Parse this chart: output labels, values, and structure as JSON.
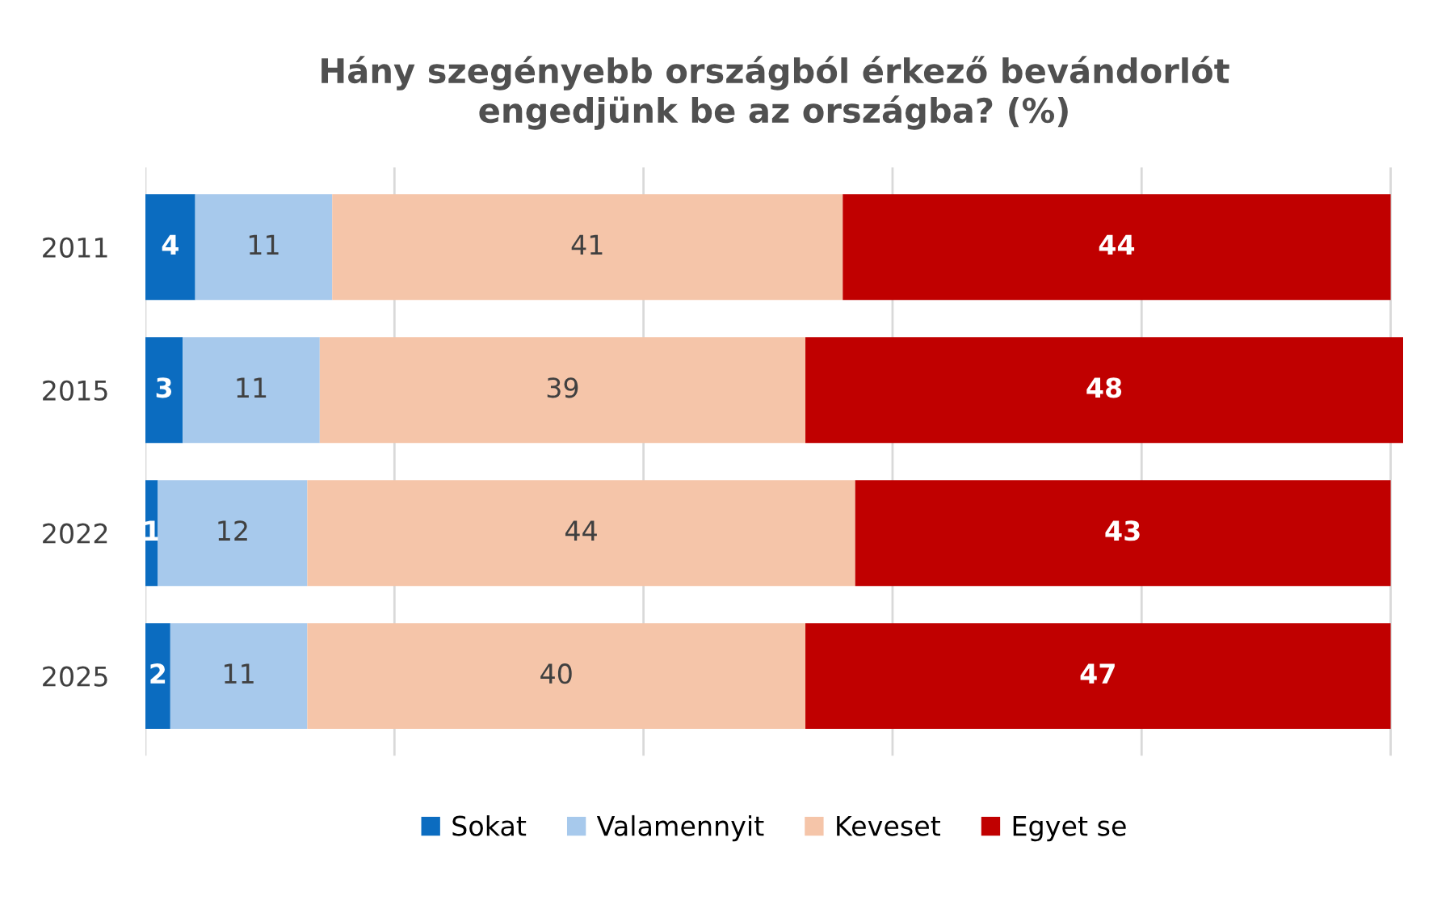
{
  "chart_data": {
    "type": "bar",
    "orientation": "horizontal",
    "stacked": true,
    "title": "Hány szegényebb országból érkező bevándorlót\nengedjünk be az országba? (%)",
    "categories": [
      "2011",
      "2015",
      "2022",
      "2025"
    ],
    "series": [
      {
        "name": "Sokat",
        "color": "#0b6cc0",
        "values": [
          4,
          3,
          1,
          2
        ]
      },
      {
        "name": "Valamennyit",
        "color": "#a7c9ec",
        "values": [
          11,
          11,
          12,
          11
        ]
      },
      {
        "name": "Keveset",
        "color": "#f5c5a9",
        "values": [
          41,
          39,
          44,
          40
        ]
      },
      {
        "name": "Egyet se",
        "color": "#c00000",
        "values": [
          44,
          48,
          43,
          47
        ]
      }
    ],
    "xlim": [
      0,
      101
    ],
    "xticks": [
      {
        "value": 0,
        "label": null
      },
      {
        "value": 20,
        "label": null
      },
      {
        "value": 40,
        "label": null
      },
      {
        "value": 60,
        "label": null
      },
      {
        "value": 80,
        "label": null
      },
      {
        "value": 100,
        "label": null
      }
    ],
    "grid": "x",
    "legend": "bottom",
    "data_labels": true,
    "tick_labels": "y"
  }
}
